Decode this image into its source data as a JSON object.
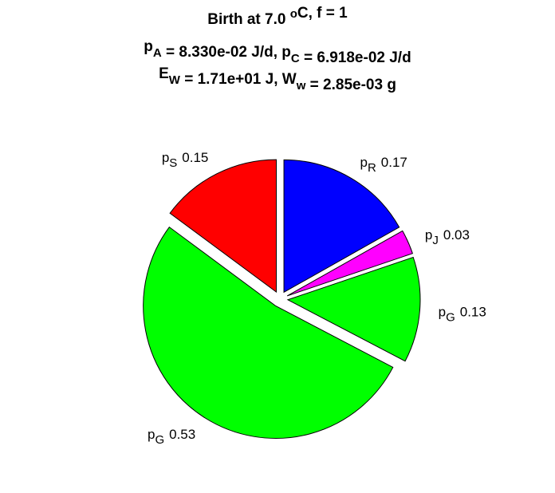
{
  "chart_data": {
    "type": "pie",
    "title": [
      [
        "Birth at 7.0 ",
        {
          "sup": "o"
        },
        "C, f = 1"
      ],
      [
        "p",
        {
          "sub": "A"
        },
        " = 8.330e-02 J/d, p",
        {
          "sub": "C"
        },
        " = 6.918e-02 J/d"
      ],
      [
        "E",
        {
          "sub": "W"
        },
        " = 1.71e+01 J, W",
        {
          "sub": "w"
        },
        " = 2.85e-03 g"
      ]
    ],
    "labels": [
      {
        "text": "p",
        "sub": "S"
      },
      {
        "text": "p",
        "sub": "G"
      },
      {
        "text": "p",
        "sub": "G"
      },
      {
        "text": "p",
        "sub": "J"
      },
      {
        "text": "p",
        "sub": "R"
      }
    ],
    "values": [
      0.15,
      0.53,
      0.13,
      0.03,
      0.17
    ],
    "colors": [
      "#ff0000",
      "#00ff00",
      "#00ff00",
      "#ff00ff",
      "#0000ff"
    ],
    "explode": true
  }
}
